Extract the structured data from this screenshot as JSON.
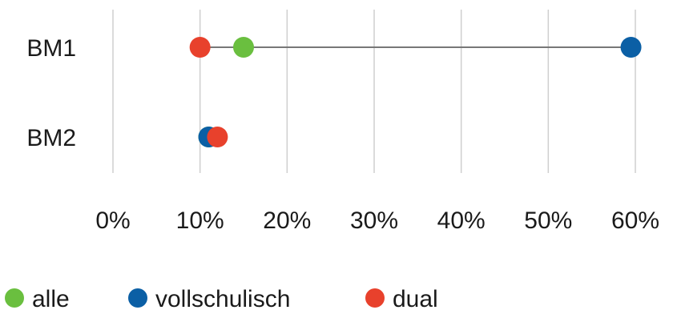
{
  "chart_data": {
    "type": "scatter",
    "orientation": "horizontal-dot-plot",
    "categories": [
      "BM1",
      "BM2"
    ],
    "series": [
      {
        "name": "alle",
        "values": [
          15,
          11
        ],
        "color": "#6abf3f"
      },
      {
        "name": "vollschulisch",
        "values": [
          59.5,
          11
        ],
        "color": "#0b5fa5"
      },
      {
        "name": "dual",
        "values": [
          10,
          12
        ],
        "color": "#e8412c"
      }
    ],
    "xticks": [
      "0%",
      "10%",
      "20%",
      "30%",
      "40%",
      "50%",
      "60%"
    ],
    "xtick_values": [
      0,
      10,
      20,
      30,
      40,
      50,
      60
    ],
    "xlim": [
      0,
      60
    ],
    "grid": true,
    "legend_position": "bottom-left",
    "range_line_color": "#777777",
    "draw_order": [
      "alle",
      "vollschulisch",
      "dual"
    ]
  }
}
